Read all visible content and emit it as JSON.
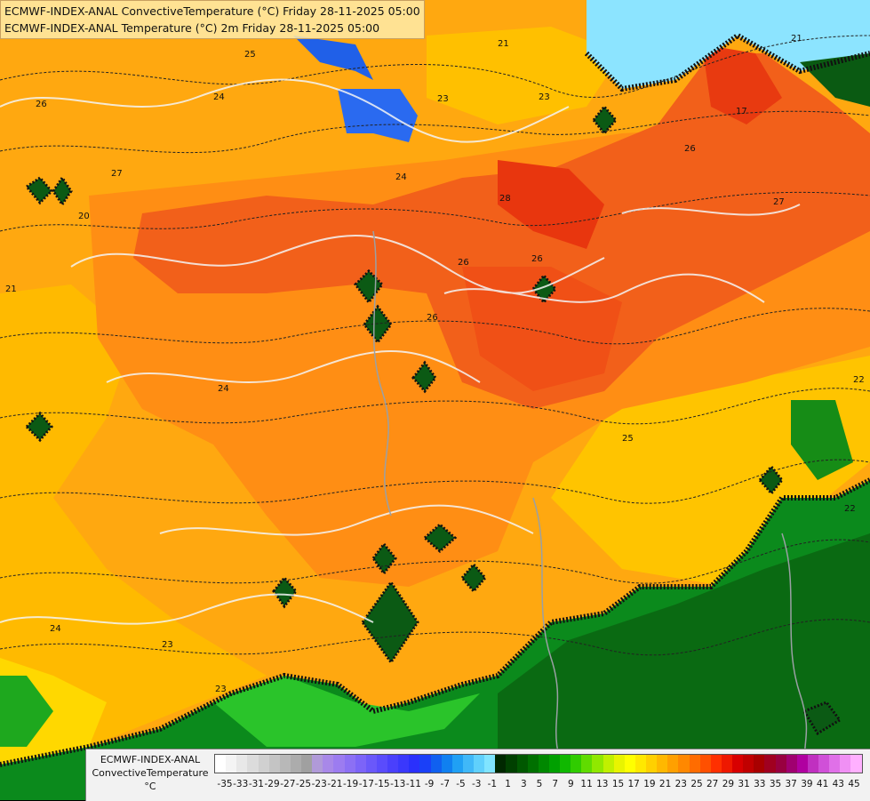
{
  "header": {
    "line1": "ECMWF-INDEX-ANAL ConvectiveTemperature (°C) Friday 28-11-2025 05:00",
    "line2": "ECMWF-INDEX-ANAL Temperature (°C) 2m Friday 28-11-2025 05:00"
  },
  "legend": {
    "label_line1": "ECMWF-INDEX-ANAL",
    "label_line2": "ConvectiveTemperature",
    "label_line3": "°C",
    "ticks": [
      "-35",
      "-33",
      "-31",
      "-29",
      "-27",
      "-25",
      "-23",
      "-21",
      "-19",
      "-17",
      "-15",
      "-13",
      "-11",
      "-9",
      "-7",
      "-5",
      "-3",
      "-1",
      "1",
      "3",
      "5",
      "7",
      "9",
      "11",
      "13",
      "15",
      "17",
      "19",
      "21",
      "23",
      "25",
      "27",
      "29",
      "31",
      "33",
      "35",
      "37",
      "39",
      "41",
      "43",
      "45"
    ],
    "swatch_colors": [
      "#ffffff",
      "#f4f4f4",
      "#e8e8e8",
      "#dcdcdc",
      "#d0d0d0",
      "#c4c4c4",
      "#b8b8b8",
      "#acacac",
      "#a0a0a0",
      "#b09ad8",
      "#a888e8",
      "#9c7cf0",
      "#8c70f4",
      "#7c64f8",
      "#6a58fa",
      "#5a4cfc",
      "#4a40fc",
      "#3a38fc",
      "#2a30fc",
      "#1a40f8",
      "#1060f0",
      "#1080f0",
      "#20a0f4",
      "#40b8f8",
      "#60d0fc",
      "#80e4ff",
      "#002800",
      "#004000",
      "#005800",
      "#007000",
      "#008800",
      "#00a000",
      "#10b800",
      "#30cc00",
      "#60dc00",
      "#90e800",
      "#c0f000",
      "#e8f400",
      "#ffff00",
      "#ffe800",
      "#ffd000",
      "#ffb800",
      "#ffa000",
      "#ff8800",
      "#ff6c00",
      "#ff5000",
      "#ff3000",
      "#ee1800",
      "#d80000",
      "#c00000",
      "#a80000",
      "#a00020",
      "#980040",
      "#a00070",
      "#b000a0",
      "#c030c0",
      "#d050d8",
      "#e070e8",
      "#f090f4",
      "#ffb0ff"
    ]
  },
  "map": {
    "contour_labels": [
      "25",
      "24",
      "23",
      "24",
      "26",
      "27",
      "28",
      "26",
      "26",
      "27",
      "24",
      "23",
      "24",
      "23",
      "22",
      "25",
      "26",
      "21",
      "23",
      "20",
      "21",
      "21",
      "22",
      "26",
      "17"
    ]
  },
  "colors": {
    "hot_red": "#f04a10",
    "warm_orange": "#ff8c1a",
    "yellow_orange": "#ffb200",
    "yellow": "#ffd200",
    "green_dark": "#0a6a12",
    "green": "#1aaa1a",
    "blue": "#2a6af0",
    "light_blue": "#8ce4ff"
  }
}
